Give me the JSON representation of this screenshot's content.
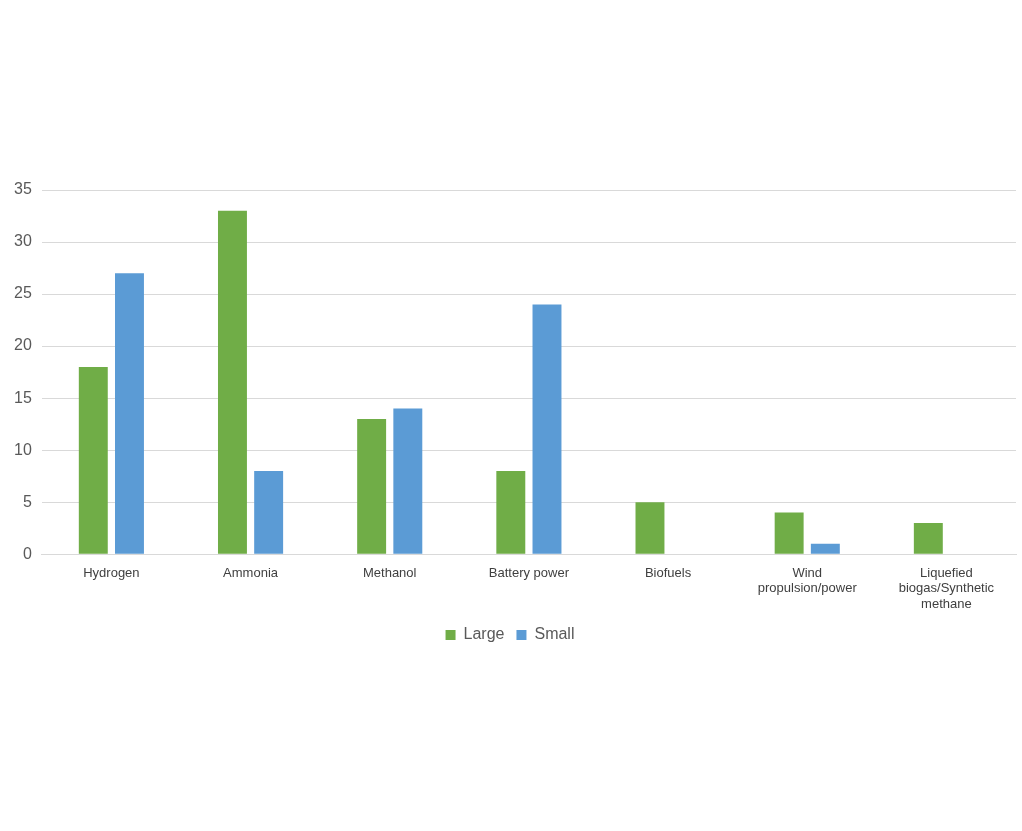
{
  "chart_data": {
    "type": "bar",
    "categories": [
      "Hydrogen",
      "Ammonia",
      "Methanol",
      "Battery power",
      "Biofuels",
      "Wind propulsion/power",
      "Liquefied biogas/Synthetic methane"
    ],
    "series": [
      {
        "name": "Large",
        "color": "#70ad47",
        "values": [
          18,
          33,
          13,
          8,
          5,
          4,
          3
        ]
      },
      {
        "name": "Small",
        "color": "#5b9bd5",
        "values": [
          27,
          8,
          14,
          24,
          null,
          1,
          null
        ]
      }
    ],
    "ylim": [
      0,
      35
    ],
    "yticks": [
      0,
      5,
      10,
      15,
      20,
      25,
      30,
      35
    ],
    "grid": true,
    "legend": "bottom"
  }
}
